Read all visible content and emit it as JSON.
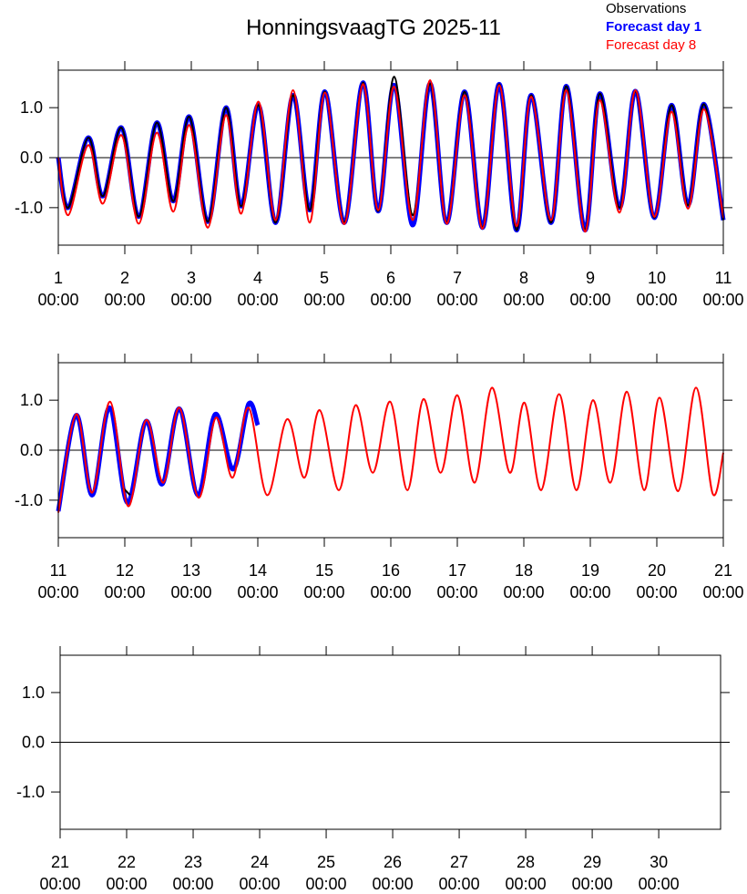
{
  "title": "HonningsvaagTG 2025-11",
  "chart_data": [
    {
      "type": "line",
      "xlim": [
        1,
        11
      ],
      "ylim": [
        -1.75,
        1.75
      ],
      "xticks": [
        {
          "value": 1,
          "label": "1",
          "time": "00:00"
        },
        {
          "value": 2,
          "label": "2",
          "time": "00:00"
        },
        {
          "value": 3,
          "label": "3",
          "time": "00:00"
        },
        {
          "value": 4,
          "label": "4",
          "time": "00:00"
        },
        {
          "value": 5,
          "label": "5",
          "time": "00:00"
        },
        {
          "value": 6,
          "label": "6",
          "time": "00:00"
        },
        {
          "value": 7,
          "label": "7",
          "time": "00:00"
        },
        {
          "value": 8,
          "label": "8",
          "time": "00:00"
        },
        {
          "value": 9,
          "label": "9",
          "time": "00:00"
        },
        {
          "value": 10,
          "label": "10",
          "time": "00:00"
        },
        {
          "value": 11,
          "label": "11",
          "time": "00:00"
        }
      ],
      "yticks": [
        {
          "value": 1,
          "label": "1.0"
        },
        {
          "value": 0,
          "label": "0.0"
        },
        {
          "value": -1,
          "label": "-1.0"
        }
      ],
      "zero_line": true,
      "x": [
        1.0,
        1.15,
        1.45,
        1.67,
        1.95,
        2.21,
        2.48,
        2.73,
        2.97,
        3.25,
        3.52,
        3.75,
        4.01,
        4.27,
        4.53,
        4.78,
        5.01,
        5.3,
        5.58,
        5.81,
        6.05,
        6.33,
        6.59,
        6.84,
        7.11,
        7.38,
        7.63,
        7.89,
        8.11,
        8.41,
        8.64,
        8.92,
        9.14,
        9.44,
        9.68,
        9.96,
        10.22,
        10.47,
        10.71,
        11.0
      ],
      "series": [
        {
          "name": "Observations",
          "color": "#000000",
          "linewidth": 2,
          "values": [
            0.0,
            -1.0,
            0.4,
            -0.77,
            0.6,
            -1.18,
            0.7,
            -0.87,
            0.82,
            -1.28,
            1.0,
            -0.97,
            1.05,
            -1.3,
            1.25,
            -1.05,
            1.32,
            -1.3,
            1.5,
            -1.07,
            1.62,
            -1.15,
            1.48,
            -1.3,
            1.32,
            -1.4,
            1.47,
            -1.45,
            1.25,
            -1.3,
            1.43,
            -1.45,
            1.28,
            -1.0,
            1.33,
            -1.2,
            1.05,
            -0.95,
            1.07,
            -1.25
          ]
        },
        {
          "name": "Forecast day 1",
          "color": "#0000ff",
          "linewidth": 5,
          "values": [
            0.0,
            -1.0,
            0.4,
            -0.77,
            0.6,
            -1.18,
            0.7,
            -0.87,
            0.82,
            -1.28,
            1.0,
            -0.97,
            1.05,
            -1.3,
            1.25,
            -1.05,
            1.32,
            -1.3,
            1.5,
            -1.07,
            1.45,
            -1.35,
            1.48,
            -1.3,
            1.32,
            -1.4,
            1.47,
            -1.45,
            1.25,
            -1.3,
            1.43,
            -1.45,
            1.28,
            -1.0,
            1.33,
            -1.2,
            1.05,
            -0.95,
            1.07,
            -1.25
          ]
        },
        {
          "name": "Forecast day 8",
          "color": "#ff0000",
          "linewidth": 2,
          "values": [
            0.0,
            -1.15,
            0.25,
            -0.92,
            0.45,
            -1.32,
            0.5,
            -1.08,
            0.65,
            -1.4,
            0.85,
            -1.12,
            1.12,
            -1.25,
            1.35,
            -1.3,
            1.3,
            -1.33,
            1.47,
            -1.05,
            1.42,
            -1.25,
            1.55,
            -1.32,
            1.25,
            -1.42,
            1.45,
            -1.37,
            1.22,
            -1.25,
            1.35,
            -1.48,
            1.15,
            -1.1,
            1.35,
            -1.18,
            0.92,
            -1.02,
            0.97,
            -1.2
          ]
        }
      ]
    },
    {
      "type": "line",
      "xlim": [
        11,
        21
      ],
      "ylim": [
        -1.75,
        1.75
      ],
      "xticks": [
        {
          "value": 11,
          "label": "11",
          "time": "00:00"
        },
        {
          "value": 12,
          "label": "12",
          "time": "00:00"
        },
        {
          "value": 13,
          "label": "13",
          "time": "00:00"
        },
        {
          "value": 14,
          "label": "14",
          "time": "00:00"
        },
        {
          "value": 15,
          "label": "15",
          "time": "00:00"
        },
        {
          "value": 16,
          "label": "16",
          "time": "00:00"
        },
        {
          "value": 17,
          "label": "17",
          "time": "00:00"
        },
        {
          "value": 18,
          "label": "18",
          "time": "00:00"
        },
        {
          "value": 19,
          "label": "19",
          "time": "00:00"
        },
        {
          "value": 20,
          "label": "20",
          "time": "00:00"
        },
        {
          "value": 21,
          "label": "21",
          "time": "00:00"
        }
      ],
      "yticks": [
        {
          "value": 1,
          "label": "1.0"
        },
        {
          "value": 0,
          "label": "0.0"
        },
        {
          "value": -1,
          "label": "-1.0"
        }
      ],
      "zero_line": true,
      "series": [
        {
          "name": "Observations",
          "color": "#000000",
          "linewidth": 2,
          "x": [
            11.97,
            12.08
          ],
          "values": [
            -0.75,
            -0.9
          ]
        },
        {
          "name": "Forecast day 1",
          "color": "#0000ff",
          "linewidth": 5,
          "x": [
            11.0,
            11.27,
            11.51,
            11.77,
            12.04,
            12.32,
            12.56,
            12.82,
            13.1,
            13.36,
            13.63,
            13.86,
            14.0
          ],
          "values": [
            -1.22,
            0.7,
            -0.9,
            0.85,
            -1.05,
            0.58,
            -0.68,
            0.83,
            -0.9,
            0.72,
            -0.38,
            0.92,
            0.5
          ]
        },
        {
          "name": "Forecast day 8",
          "color": "#ff0000",
          "linewidth": 2,
          "x": [
            11.0,
            11.27,
            11.51,
            11.78,
            12.05,
            12.32,
            12.58,
            12.82,
            13.11,
            13.37,
            13.62,
            13.86,
            14.14,
            14.44,
            14.7,
            14.93,
            15.22,
            15.47,
            15.73,
            15.99,
            16.25,
            16.49,
            16.75,
            17.0,
            17.26,
            17.52,
            17.79,
            18.01,
            18.26,
            18.53,
            18.79,
            19.04,
            19.3,
            19.55,
            19.81,
            20.04,
            20.32,
            20.59,
            20.84,
            21.0
          ],
          "values": [
            -1.25,
            0.72,
            -0.85,
            0.97,
            -1.12,
            0.6,
            -0.65,
            0.85,
            -0.95,
            0.65,
            -0.55,
            0.85,
            -0.9,
            0.62,
            -0.55,
            0.8,
            -0.8,
            0.9,
            -0.45,
            0.97,
            -0.8,
            1.02,
            -0.45,
            1.1,
            -0.65,
            1.25,
            -0.45,
            0.95,
            -0.8,
            1.12,
            -0.8,
            1.0,
            -0.65,
            1.17,
            -0.8,
            1.05,
            -0.82,
            1.25,
            -0.87,
            -0.05
          ]
        }
      ]
    },
    {
      "type": "line",
      "xlim": [
        21,
        30.93
      ],
      "ylim": [
        -1.75,
        1.75
      ],
      "xticks": [
        {
          "value": 21,
          "label": "21",
          "time": "00:00"
        },
        {
          "value": 22,
          "label": "22",
          "time": "00:00"
        },
        {
          "value": 23,
          "label": "23",
          "time": "00:00"
        },
        {
          "value": 24,
          "label": "24",
          "time": "00:00"
        },
        {
          "value": 25,
          "label": "25",
          "time": "00:00"
        },
        {
          "value": 26,
          "label": "26",
          "time": "00:00"
        },
        {
          "value": 27,
          "label": "27",
          "time": "00:00"
        },
        {
          "value": 28,
          "label": "28",
          "time": "00:00"
        },
        {
          "value": 29,
          "label": "29",
          "time": "00:00"
        },
        {
          "value": 30,
          "label": "30",
          "time": "00:00"
        }
      ],
      "yticks": [
        {
          "value": 1,
          "label": "1.0"
        },
        {
          "value": 0,
          "label": "0.0"
        },
        {
          "value": -1,
          "label": "-1.0"
        }
      ],
      "zero_line": true,
      "series": []
    }
  ]
}
